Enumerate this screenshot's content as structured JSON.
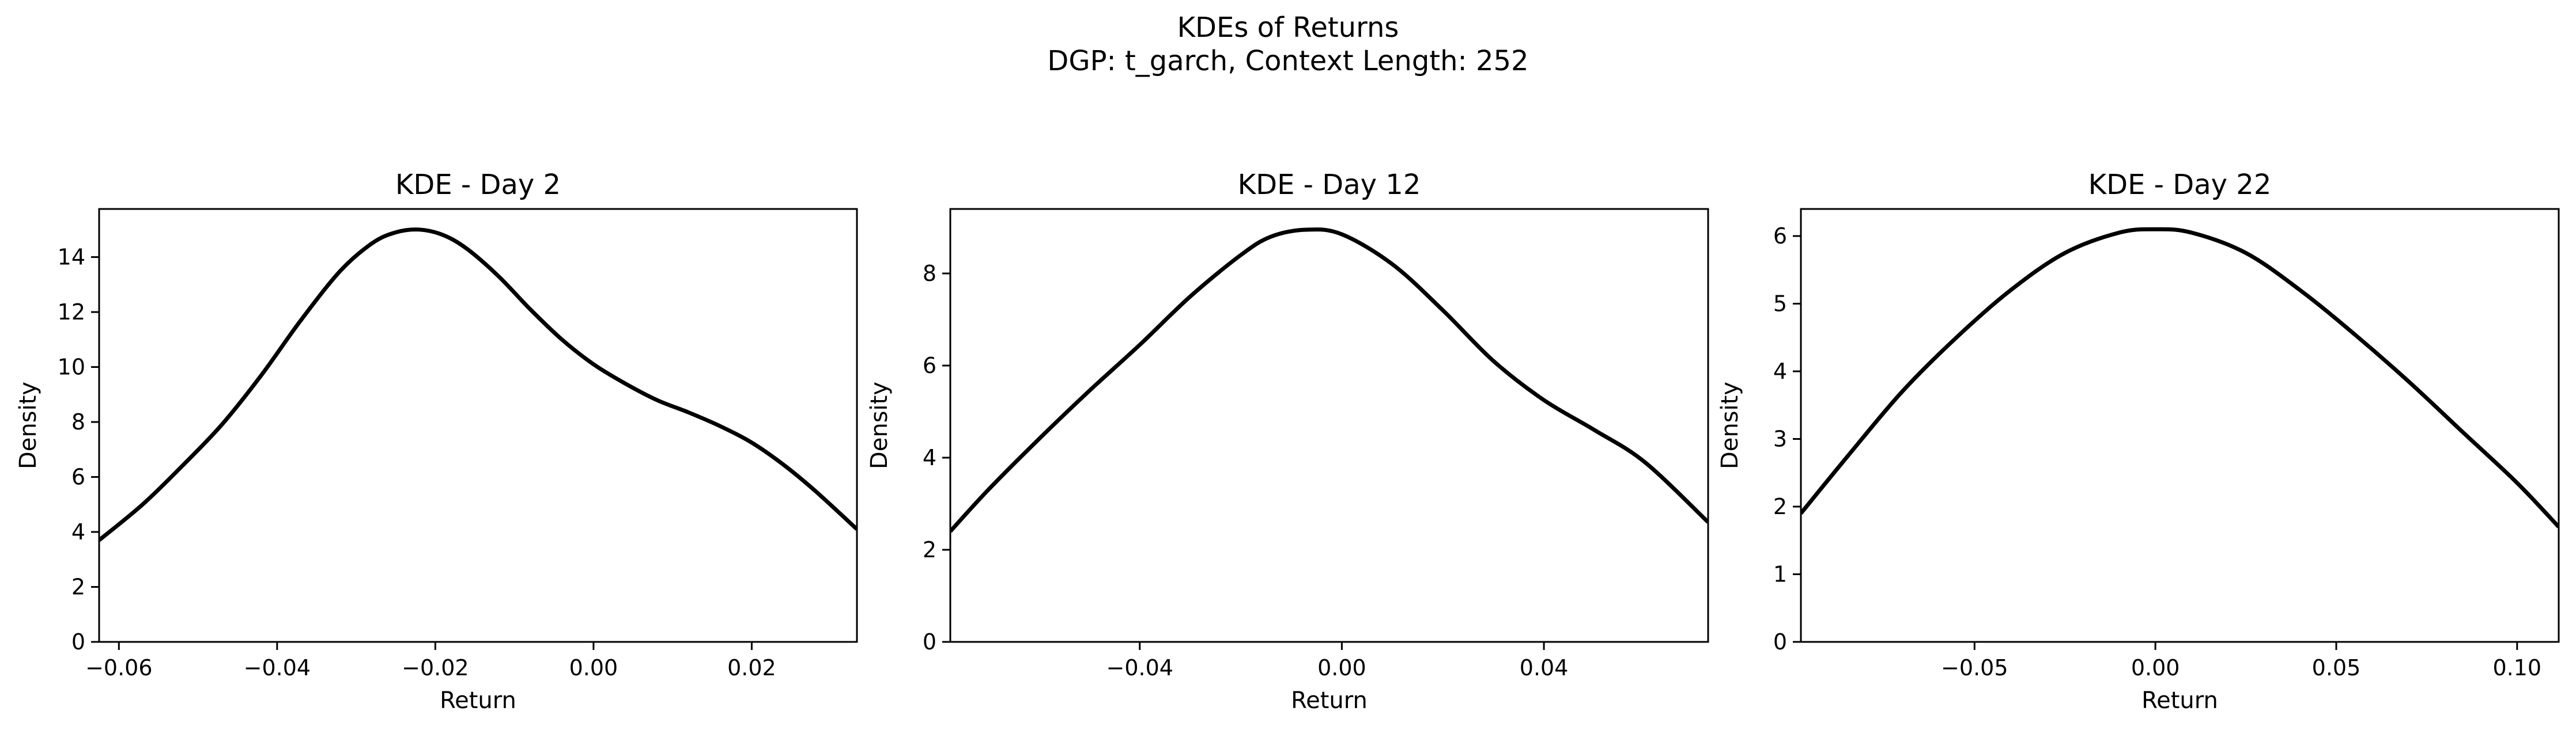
{
  "figure": {
    "title_line1": "KDEs of Returns",
    "title_line2": "DGP: t_garch, Context Length: 252"
  },
  "chart_data": [
    {
      "type": "line",
      "title": "KDE - Day 2",
      "xlabel": "Return",
      "ylabel": "Density",
      "xlim": [
        -0.0625,
        0.0333
      ],
      "ylim": [
        0,
        15.75
      ],
      "xticks": [
        -0.06,
        -0.04,
        -0.02,
        0.0,
        0.02
      ],
      "xtick_labels": [
        "−0.06",
        "−0.04",
        "−0.02",
        "0.00",
        "0.02"
      ],
      "yticks": [
        0,
        2,
        4,
        6,
        8,
        10,
        12,
        14
      ],
      "ytick_labels": [
        "0",
        "2",
        "4",
        "6",
        "8",
        "10",
        "12",
        "14"
      ],
      "grid": false,
      "line_color": "#000000",
      "series": [
        {
          "x": [
            -0.0625,
            -0.057,
            -0.052,
            -0.047,
            -0.042,
            -0.037,
            -0.032,
            -0.028,
            -0.025,
            -0.022,
            -0.019,
            -0.016,
            -0.012,
            -0.008,
            -0.004,
            0.0,
            0.004,
            0.008,
            0.012,
            0.016,
            0.02,
            0.024,
            0.028,
            0.0333
          ],
          "y": [
            3.7,
            5.0,
            6.4,
            7.9,
            9.7,
            11.7,
            13.5,
            14.5,
            14.9,
            15.0,
            14.8,
            14.3,
            13.3,
            12.1,
            11.0,
            10.1,
            9.4,
            8.8,
            8.35,
            7.85,
            7.25,
            6.45,
            5.5,
            4.1
          ]
        }
      ]
    },
    {
      "type": "line",
      "title": "KDE - Day 12",
      "xlabel": "Return",
      "ylabel": "Density",
      "xlim": [
        -0.0775,
        0.0725
      ],
      "ylim": [
        0,
        9.4
      ],
      "xticks": [
        -0.04,
        0.0,
        0.04
      ],
      "xtick_labels": [
        "−0.04",
        "0.00",
        "0.04"
      ],
      "yticks": [
        0,
        2,
        4,
        6,
        8
      ],
      "ytick_labels": [
        "0",
        "2",
        "4",
        "6",
        "8"
      ],
      "grid": false,
      "line_color": "#000000",
      "series": [
        {
          "x": [
            -0.0775,
            -0.07,
            -0.06,
            -0.05,
            -0.04,
            -0.03,
            -0.02,
            -0.014,
            -0.007,
            0.0,
            0.01,
            0.02,
            0.03,
            0.04,
            0.05,
            0.06,
            0.0725
          ],
          "y": [
            2.4,
            3.3,
            4.4,
            5.45,
            6.45,
            7.5,
            8.4,
            8.8,
            8.95,
            8.85,
            8.2,
            7.2,
            6.1,
            5.25,
            4.6,
            3.9,
            2.6
          ]
        }
      ]
    },
    {
      "type": "line",
      "title": "KDE - Day 22",
      "xlabel": "Return",
      "ylabel": "Density",
      "xlim": [
        -0.098,
        0.1115
      ],
      "ylim": [
        0,
        6.4
      ],
      "xticks": [
        -0.05,
        0.0,
        0.05,
        0.1
      ],
      "xtick_labels": [
        "−0.05",
        "0.00",
        "0.05",
        "0.10"
      ],
      "yticks": [
        0,
        1,
        2,
        3,
        4,
        5,
        6
      ],
      "ytick_labels": [
        "0",
        "1",
        "2",
        "3",
        "4",
        "5",
        "6"
      ],
      "grid": false,
      "line_color": "#000000",
      "series": [
        {
          "x": [
            -0.098,
            -0.085,
            -0.07,
            -0.055,
            -0.04,
            -0.025,
            -0.01,
            0.0,
            0.01,
            0.025,
            0.04,
            0.055,
            0.07,
            0.085,
            0.1,
            0.1115
          ],
          "y": [
            1.9,
            2.75,
            3.7,
            4.5,
            5.2,
            5.75,
            6.05,
            6.1,
            6.05,
            5.75,
            5.2,
            4.55,
            3.85,
            3.1,
            2.35,
            1.7
          ]
        }
      ]
    }
  ]
}
